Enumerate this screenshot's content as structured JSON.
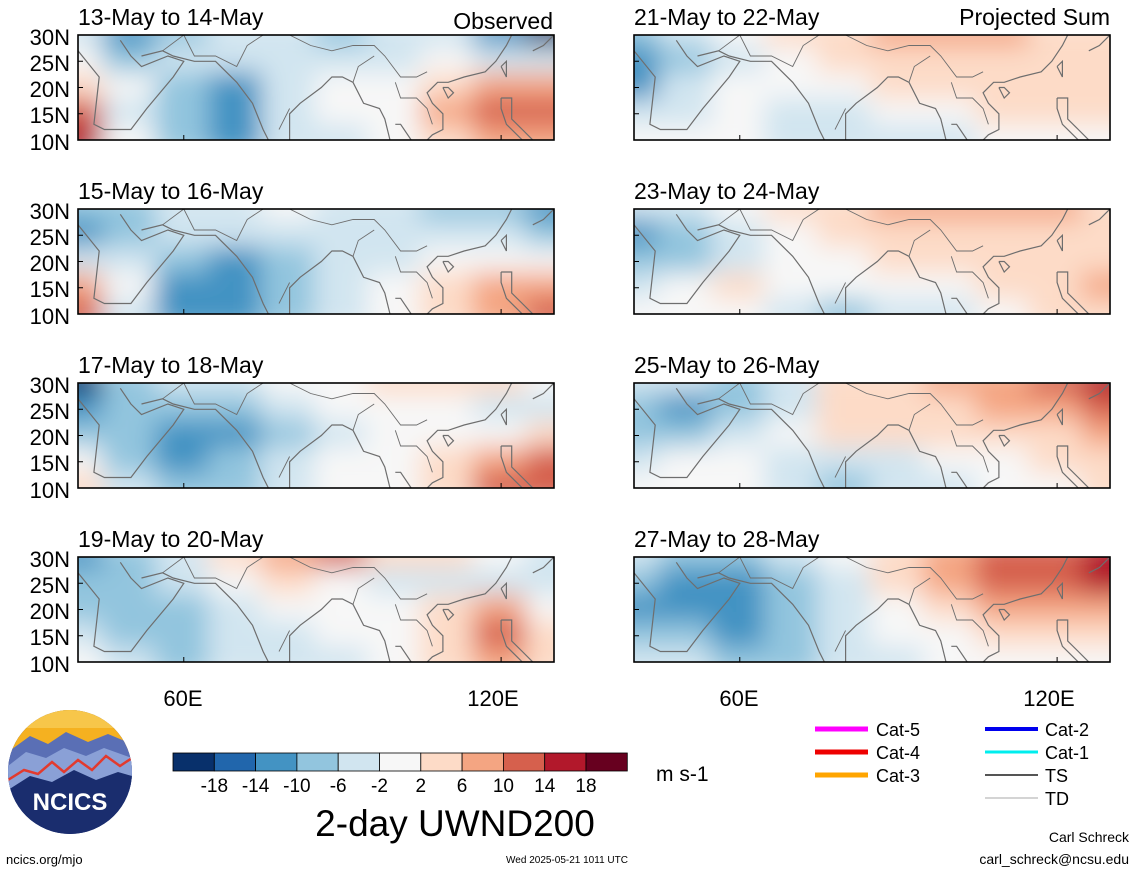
{
  "headers": {
    "observed": "Observed",
    "projected": "Projected Sum"
  },
  "panels": {
    "observed": [
      {
        "period": "13-May to 14-May"
      },
      {
        "period": "15-May to 16-May"
      },
      {
        "period": "17-May to 18-May"
      },
      {
        "period": "19-May to 20-May"
      }
    ],
    "projected": [
      {
        "period": "21-May to 22-May"
      },
      {
        "period": "23-May to 24-May"
      },
      {
        "period": "25-May to 26-May"
      },
      {
        "period": "27-May to 28-May"
      }
    ]
  },
  "colorbar": {
    "unit": "m s-1",
    "title": "2-day UWND200",
    "tick_labels": [
      "-18",
      "-14",
      "-10",
      "-6",
      "-2",
      "2",
      "6",
      "10",
      "14",
      "18"
    ],
    "colors": [
      "#08306b",
      "#2166ac",
      "#4393c3",
      "#92c5de",
      "#d1e5f0",
      "#f7f7f7",
      "#fddbc7",
      "#f4a582",
      "#d6604d",
      "#b2182b",
      "#67001f"
    ]
  },
  "legend": {
    "items": [
      {
        "label": "Cat-5",
        "color": "#ff00ff"
      },
      {
        "label": "Cat-4",
        "color": "#ee0000"
      },
      {
        "label": "Cat-3",
        "color": "#ffa500"
      },
      {
        "label": "Cat-2",
        "color": "#0000ee"
      },
      {
        "label": "Cat-1",
        "color": "#00eeee"
      },
      {
        "label": "TS",
        "color": "#555555"
      },
      {
        "label": "TD",
        "color": "#aaaaaa"
      }
    ]
  },
  "logo": {
    "text": "NCICS"
  },
  "footer": {
    "left": "ncics.org/mjo",
    "timestamp": "Wed 2025-05-21 1011 UTC",
    "author": "Carl Schreck",
    "email": "carl_schreck@ncsu.edu"
  },
  "chart_data": {
    "type": "heatmap",
    "title": "2-day UWND200",
    "unit": "m s-1",
    "y_tick_labels": [
      "30N",
      "25N",
      "20N",
      "15N",
      "10N"
    ],
    "x_tick_labels": [
      "60E",
      "120E"
    ],
    "x_range_lon": [
      40,
      130
    ],
    "y_range_lat": [
      10,
      30
    ],
    "contour_levels": [
      -18,
      -14,
      -10,
      -6,
      -2,
      2,
      6,
      10,
      14,
      18
    ],
    "lon_nodes": [
      40,
      50,
      60,
      70,
      80,
      90,
      100,
      110,
      120,
      130
    ],
    "lat_nodes": [
      30,
      25,
      20,
      15,
      10
    ],
    "panels": [
      {
        "group": "observed",
        "period": "13-May to 14-May",
        "u_wind": [
          [
            -6,
            -14,
            -10,
            -4,
            -6,
            -8,
            -4,
            -6,
            -14,
            -20
          ],
          [
            -2,
            -8,
            -6,
            -4,
            -6,
            -6,
            -4,
            -2,
            -4,
            -4
          ],
          [
            4,
            -2,
            -8,
            -12,
            -4,
            -2,
            -2,
            4,
            6,
            8
          ],
          [
            10,
            -4,
            -10,
            -14,
            -6,
            -2,
            0,
            6,
            10,
            12
          ],
          [
            14,
            -2,
            -8,
            -12,
            -6,
            -4,
            -2,
            2,
            8,
            8
          ]
        ]
      },
      {
        "group": "observed",
        "period": "15-May to 16-May",
        "u_wind": [
          [
            -10,
            -8,
            -4,
            -4,
            -2,
            -4,
            -6,
            -8,
            -8,
            -12
          ],
          [
            -12,
            -10,
            -6,
            -6,
            -4,
            -4,
            -6,
            -6,
            -4,
            -8
          ],
          [
            -6,
            -4,
            -10,
            -14,
            -8,
            -6,
            -4,
            -2,
            -2,
            0
          ],
          [
            8,
            -2,
            -12,
            -14,
            -8,
            -4,
            -2,
            2,
            6,
            8
          ],
          [
            12,
            -4,
            -12,
            -12,
            -8,
            -4,
            -2,
            2,
            8,
            12
          ]
        ]
      },
      {
        "group": "observed",
        "period": "17-May to 18-May",
        "u_wind": [
          [
            -20,
            -10,
            -6,
            -4,
            -2,
            0,
            2,
            4,
            2,
            0
          ],
          [
            -14,
            -10,
            -8,
            -8,
            -4,
            -2,
            0,
            -2,
            -4,
            -4
          ],
          [
            -8,
            -10,
            -12,
            -12,
            -8,
            -4,
            -2,
            -2,
            -2,
            2
          ],
          [
            -2,
            -8,
            -12,
            -10,
            -6,
            -2,
            0,
            2,
            8,
            10
          ],
          [
            2,
            -6,
            -10,
            -8,
            -6,
            -2,
            0,
            4,
            10,
            12
          ]
        ]
      },
      {
        "group": "observed",
        "period": "19-May to 20-May",
        "u_wind": [
          [
            -12,
            -8,
            -4,
            2,
            6,
            10,
            4,
            2,
            -2,
            -4
          ],
          [
            -10,
            -10,
            -6,
            -2,
            2,
            0,
            -4,
            -4,
            -4,
            -4
          ],
          [
            -8,
            -10,
            -8,
            -4,
            -2,
            0,
            -2,
            2,
            6,
            -2
          ],
          [
            -6,
            -10,
            -10,
            -6,
            -4,
            -2,
            0,
            4,
            10,
            2
          ],
          [
            -2,
            -6,
            -8,
            -6,
            -6,
            -4,
            -2,
            2,
            6,
            2
          ]
        ]
      },
      {
        "group": "projected",
        "period": "21-May to 22-May",
        "u_wind": [
          [
            -8,
            -4,
            -2,
            2,
            4,
            8,
            8,
            6,
            4,
            2
          ],
          [
            -14,
            -8,
            -4,
            0,
            2,
            4,
            4,
            4,
            2,
            2
          ],
          [
            -12,
            -6,
            -2,
            -2,
            0,
            2,
            2,
            2,
            2,
            2
          ],
          [
            -6,
            -4,
            -2,
            -4,
            -4,
            -2,
            0,
            2,
            2,
            2
          ],
          [
            -2,
            -2,
            -2,
            -4,
            -6,
            -6,
            -4,
            -2,
            -2,
            0
          ]
        ]
      },
      {
        "group": "projected",
        "period": "23-May to 24-May",
        "u_wind": [
          [
            -6,
            -4,
            0,
            2,
            4,
            6,
            6,
            6,
            6,
            4
          ],
          [
            -12,
            -10,
            -4,
            0,
            2,
            4,
            4,
            4,
            4,
            2
          ],
          [
            -10,
            -8,
            -4,
            -2,
            0,
            2,
            2,
            2,
            2,
            2
          ],
          [
            -4,
            -2,
            2,
            0,
            -2,
            -2,
            -2,
            2,
            4,
            6
          ],
          [
            -2,
            -2,
            -2,
            -6,
            -8,
            -6,
            -4,
            -2,
            2,
            4
          ]
        ]
      },
      {
        "group": "projected",
        "period": "25-May to 26-May",
        "u_wind": [
          [
            -4,
            -6,
            -8,
            -4,
            2,
            4,
            6,
            8,
            10,
            14
          ],
          [
            -10,
            -12,
            -8,
            -4,
            2,
            4,
            4,
            6,
            8,
            12
          ],
          [
            -10,
            -10,
            -6,
            -2,
            2,
            4,
            4,
            4,
            4,
            6
          ],
          [
            -4,
            -2,
            0,
            -4,
            -6,
            -4,
            -2,
            0,
            2,
            4
          ],
          [
            -2,
            -2,
            -2,
            -6,
            -8,
            -6,
            -4,
            -2,
            0,
            2
          ]
        ]
      },
      {
        "group": "projected",
        "period": "27-May to 28-May",
        "u_wind": [
          [
            -6,
            -8,
            -8,
            -6,
            -2,
            4,
            8,
            10,
            12,
            14
          ],
          [
            -10,
            -12,
            -12,
            -8,
            -4,
            2,
            8,
            12,
            12,
            14
          ],
          [
            -12,
            -12,
            -12,
            -10,
            -4,
            0,
            4,
            6,
            6,
            6
          ],
          [
            -10,
            -10,
            -12,
            -10,
            -6,
            -2,
            0,
            2,
            2,
            2
          ],
          [
            -4,
            -6,
            -8,
            -8,
            -6,
            -4,
            -2,
            0,
            0,
            0
          ]
        ]
      }
    ]
  }
}
